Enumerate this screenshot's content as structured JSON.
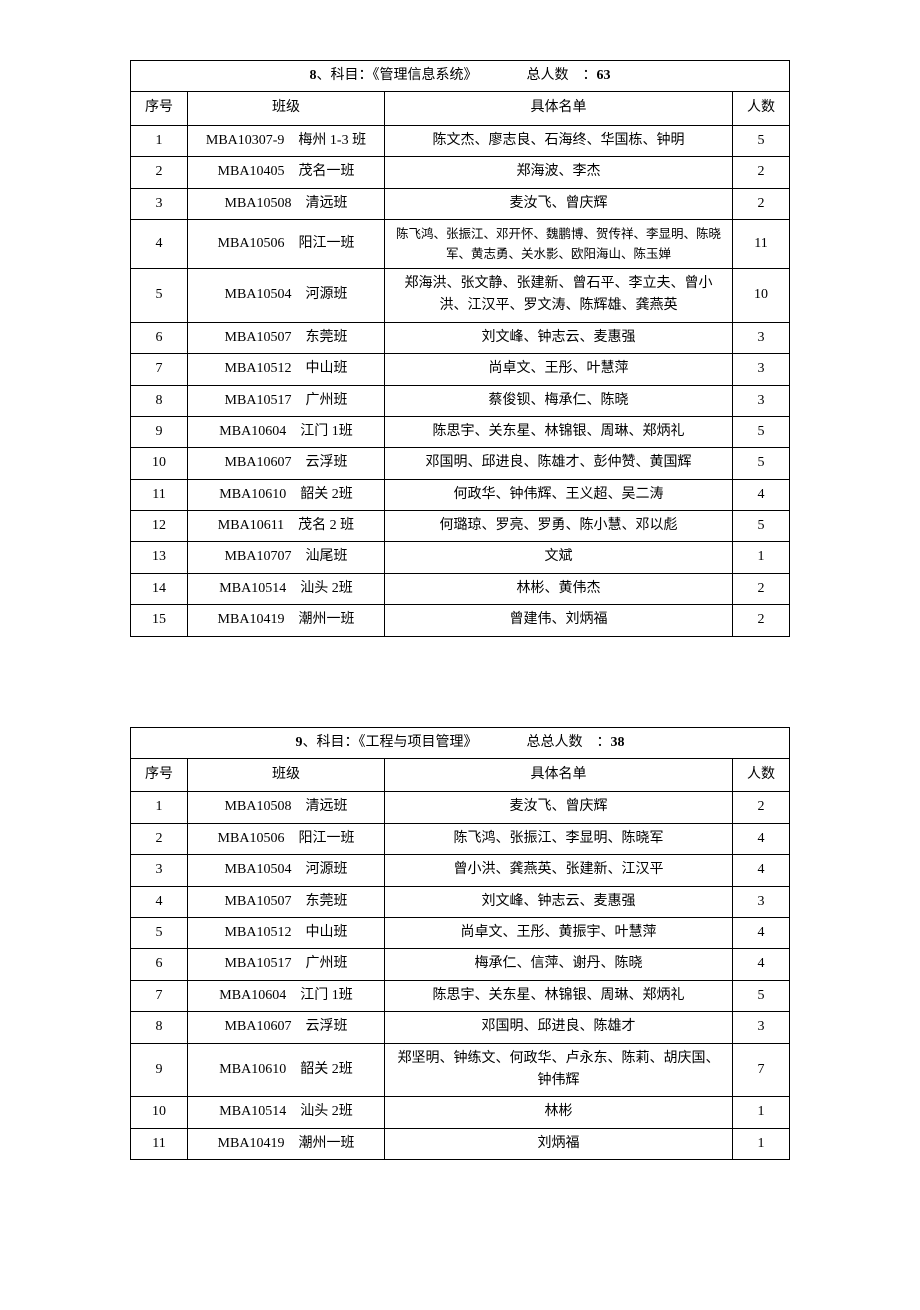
{
  "tables": [
    {
      "title_prefix_num": "8",
      "title_label_sep": "、科目：",
      "title_subject": "《管理信息系统》",
      "title_total_label": "总人数　：",
      "title_total_value": "63",
      "headers": {
        "seq": "序号",
        "class": "班级",
        "names": "具体名单",
        "count": "人数"
      },
      "rows": [
        {
          "seq": "1",
          "class": "MBA10307-9　梅州 1-3 班",
          "names": "陈文杰、廖志良、石海终、华国栋、钟明",
          "count": "5",
          "small": false
        },
        {
          "seq": "2",
          "class": "MBA10405　茂名一班",
          "names": "郑海波、李杰",
          "count": "2",
          "small": false
        },
        {
          "seq": "3",
          "class": "MBA10508　清远班",
          "names": "麦汝飞、曾庆辉",
          "count": "2",
          "small": false
        },
        {
          "seq": "4",
          "class": "MBA10506　阳江一班",
          "names": "陈飞鸿、张振江、邓开怀、魏鹏博、贺传祥、李显明、陈晓军、黄志勇、关水影、欧阳海山、陈玉婵",
          "count": "11",
          "small": true
        },
        {
          "seq": "5",
          "class": "MBA10504　河源班",
          "names": "郑海洪、张文静、张建新、曾石平、李立夫、曾小洪、江汉平、罗文涛、陈辉雄、龚燕英",
          "count": "10",
          "small": false
        },
        {
          "seq": "6",
          "class": "MBA10507　东莞班",
          "names": "刘文峰、钟志云、麦惠强",
          "count": "3",
          "small": false
        },
        {
          "seq": "7",
          "class": "MBA10512　中山班",
          "names": "尚卓文、王彤、叶慧萍",
          "count": "3",
          "small": false
        },
        {
          "seq": "8",
          "class": "MBA10517　广州班",
          "names": "蔡俊钡、梅承仁、陈晓",
          "count": "3",
          "small": false
        },
        {
          "seq": "9",
          "class": "MBA10604　江门 1班",
          "names": "陈思宇、关东星、林锦银、周琳、郑炳礼",
          "count": "5",
          "small": false
        },
        {
          "seq": "10",
          "class": "MBA10607　云浮班",
          "names": "邓国明、邱进良、陈雄才、彭仲赞、黄国辉",
          "count": "5",
          "small": false
        },
        {
          "seq": "11",
          "class": "MBA10610　韶关 2班",
          "names": "何政华、钟伟辉、王义超、吴二涛",
          "count": "4",
          "small": false
        },
        {
          "seq": "12",
          "class": "MBA10611　茂名 2 班",
          "names": "何璐琼、罗亮、罗勇、陈小慧、邓以彪",
          "count": "5",
          "small": false
        },
        {
          "seq": "13",
          "class": "MBA10707　汕尾班",
          "names": "文斌",
          "count": "1",
          "small": false
        },
        {
          "seq": "14",
          "class": "MBA10514　汕头 2班",
          "names": "林彬、黄伟杰",
          "count": "2",
          "small": false
        },
        {
          "seq": "15",
          "class": "MBA10419　潮州一班",
          "names": "曾建伟、刘炳福",
          "count": "2",
          "small": false
        }
      ]
    },
    {
      "title_prefix_num": "9",
      "title_label_sep": "、科目：",
      "title_subject": "《工程与项目管理》",
      "title_total_label": "总总人数　：",
      "title_total_value": "38",
      "headers": {
        "seq": "序号",
        "class": "班级",
        "names": "具体名单",
        "count": "人数"
      },
      "rows": [
        {
          "seq": "1",
          "class": "MBA10508　清远班",
          "names": "麦汝飞、曾庆辉",
          "count": "2",
          "small": false
        },
        {
          "seq": "2",
          "class": "MBA10506　阳江一班",
          "names": "陈飞鸿、张振江、李显明、陈晓军",
          "count": "4",
          "small": false
        },
        {
          "seq": "3",
          "class": "MBA10504　河源班",
          "names": "曾小洪、龚燕英、张建新、江汉平",
          "count": "4",
          "small": false
        },
        {
          "seq": "4",
          "class": "MBA10507　东莞班",
          "names": "刘文峰、钟志云、麦惠强",
          "count": "3",
          "small": false
        },
        {
          "seq": "5",
          "class": "MBA10512　中山班",
          "names": "尚卓文、王彤、黄振宇、叶慧萍",
          "count": "4",
          "small": false
        },
        {
          "seq": "6",
          "class": "MBA10517　广州班",
          "names": "梅承仁、信萍、谢丹、陈晓",
          "count": "4",
          "small": false
        },
        {
          "seq": "7",
          "class": "MBA10604　江门 1班",
          "names": "陈思宇、关东星、林锦银、周琳、郑炳礼",
          "count": "5",
          "small": false
        },
        {
          "seq": "8",
          "class": "MBA10607　云浮班",
          "names": "邓国明、邱进良、陈雄才",
          "count": "3",
          "small": false
        },
        {
          "seq": "9",
          "class": "MBA10610　韶关 2班",
          "names": "郑坚明、钟练文、何政华、卢永东、陈莉、胡庆国、钟伟辉",
          "count": "7",
          "small": false
        },
        {
          "seq": "10",
          "class": "MBA10514　汕头 2班",
          "names": "林彬",
          "count": "1",
          "small": false
        },
        {
          "seq": "11",
          "class": "MBA10419　潮州一班",
          "names": "刘炳福",
          "count": "1",
          "small": false
        }
      ]
    }
  ]
}
